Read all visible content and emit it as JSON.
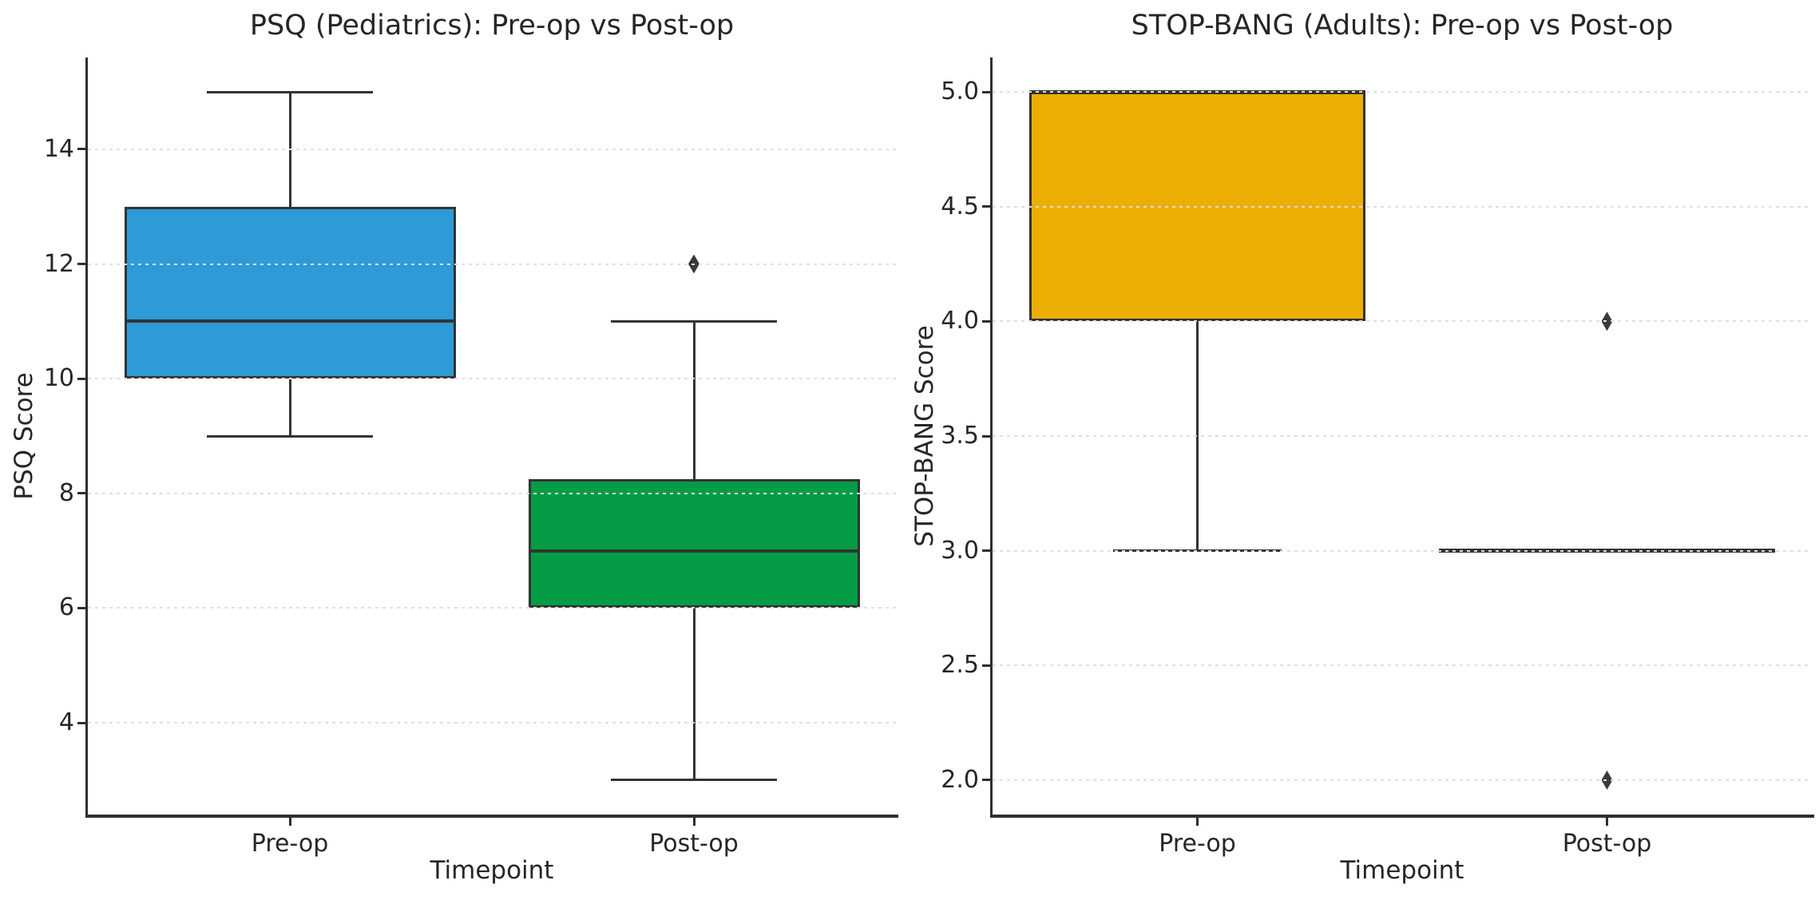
{
  "figure": {
    "background": "#FFFFFF"
  },
  "style": {
    "box_edge_color": "#333333",
    "median_color": "#333333",
    "outlier_color": "#3A3A3A",
    "grid_color": "#DFDFDF",
    "spine_color": "#2E2E2E",
    "text_color": "#262626"
  },
  "chart_data": [
    {
      "type": "box",
      "title": "PSQ (Pediatrics): Pre-op vs Post-op",
      "xlabel": "Timepoint",
      "ylabel": "PSQ Score",
      "ylim": [
        2.4,
        15.6
      ],
      "yticks": [
        4,
        6,
        8,
        10,
        12,
        14
      ],
      "ytick_labels": [
        "4",
        "6",
        "8",
        "10",
        "12",
        "14"
      ],
      "grid": "horizontal dotted",
      "legend": "none",
      "categories": [
        "Pre-op",
        "Post-op"
      ],
      "boxes": [
        {
          "category": "Pre-op",
          "fill_color": "#2E9AD6",
          "q1": 10,
          "median": 11,
          "q3": 13,
          "whisker_low": 9,
          "whisker_high": 15,
          "outliers": []
        },
        {
          "category": "Post-op",
          "fill_color": "#049C45",
          "q1": 6,
          "median": 7,
          "q3": 8.25,
          "whisker_low": 3,
          "whisker_high": 11,
          "outliers": [
            12
          ]
        }
      ]
    },
    {
      "type": "box",
      "title": "STOP-BANG (Adults): Pre-op vs Post-op",
      "xlabel": "Timepoint",
      "ylabel": "STOP-BANG Score",
      "ylim": [
        1.85,
        5.15
      ],
      "yticks": [
        2.0,
        2.5,
        3.0,
        3.5,
        4.0,
        4.5,
        5.0
      ],
      "ytick_labels": [
        "2.0",
        "2.5",
        "3.0",
        "3.5",
        "4.0",
        "4.5",
        "5.0"
      ],
      "grid": "horizontal dotted",
      "legend": "none",
      "categories": [
        "Pre-op",
        "Post-op"
      ],
      "boxes": [
        {
          "category": "Pre-op",
          "fill_color": "#ECAE03",
          "q1": 4,
          "median": 5,
          "q3": 5,
          "whisker_low": 3,
          "whisker_high": 5,
          "outliers": []
        },
        {
          "category": "Post-op",
          "fill_color": "#049C45",
          "q1": 3,
          "median": 3,
          "q3": 3,
          "whisker_low": 3,
          "whisker_high": 3,
          "outliers": [
            4,
            2
          ]
        }
      ]
    }
  ]
}
